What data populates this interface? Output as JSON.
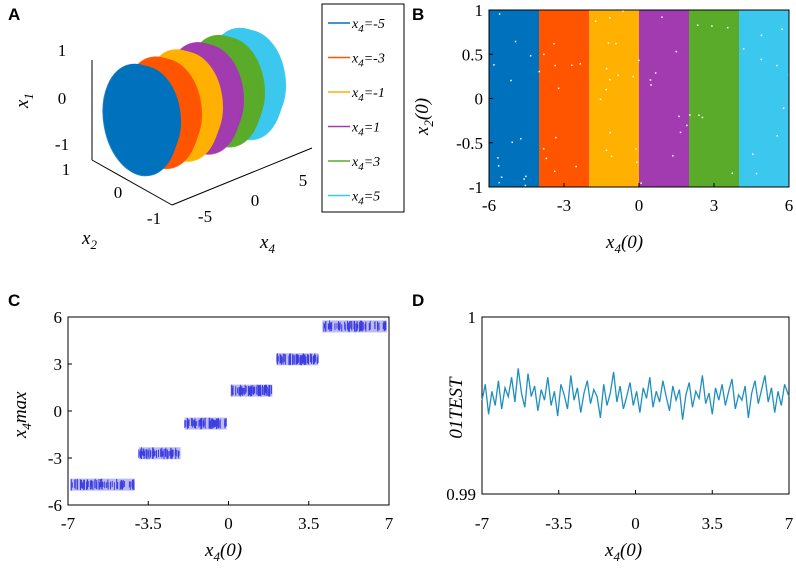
{
  "chart_data": [
    {
      "panel": "A",
      "type": "scatter",
      "title": "",
      "axes": {
        "x1": {
          "label": "x",
          "sub": "1",
          "ticks": [
            "1",
            "0",
            "-1"
          ]
        },
        "x2": {
          "label": "x",
          "sub": "2",
          "ticks": [
            "1",
            "0",
            "-1"
          ]
        },
        "x4": {
          "label": "x",
          "sub": "4",
          "ticks": [
            "-5",
            "0",
            "5"
          ]
        }
      },
      "series": [
        {
          "name": "x4=-5",
          "x4": -5,
          "color": "#0072BD"
        },
        {
          "name": "x4=-3",
          "x4": -3,
          "color": "#FF5500"
        },
        {
          "name": "x4=-1",
          "x4": -1,
          "color": "#FFB000"
        },
        {
          "name": "x4=1",
          "x4": 1,
          "color": "#A23BB0"
        },
        {
          "name": "x4=3",
          "x4": 3,
          "color": "#5AAB2A"
        },
        {
          "name": "x4=5",
          "x4": 5,
          "color": "#3CC8EE"
        }
      ],
      "legend": [
        {
          "pre": "x",
          "sub": "4",
          "post": "=-5"
        },
        {
          "pre": "x",
          "sub": "4",
          "post": "=-3"
        },
        {
          "pre": "x",
          "sub": "4",
          "post": "=-1"
        },
        {
          "pre": "x",
          "sub": "4",
          "post": "=1"
        },
        {
          "pre": "x",
          "sub": "4",
          "post": "=3"
        },
        {
          "pre": "x",
          "sub": "4",
          "post": "=5"
        }
      ]
    },
    {
      "panel": "B",
      "type": "heatmap",
      "xlabel": {
        "main": "x",
        "sub": "4",
        "post": "(0)"
      },
      "ylabel": {
        "main": "x",
        "sub": "2",
        "post": "(0)"
      },
      "xlim": [
        -6,
        6
      ],
      "ylim": [
        -1,
        1
      ],
      "xticks": [
        -6,
        -3,
        0,
        3,
        6
      ],
      "yticks": [
        1,
        0.5,
        0,
        -0.5,
        -1
      ],
      "bands": [
        {
          "x0": -6,
          "x1": -4,
          "color": "#0072BD"
        },
        {
          "x0": -4,
          "x1": -2,
          "color": "#FF5500"
        },
        {
          "x0": -2,
          "x1": 0,
          "color": "#FFB000"
        },
        {
          "x0": 0,
          "x1": 2,
          "color": "#A23BB0"
        },
        {
          "x0": 2,
          "x1": 4,
          "color": "#5AAB2A"
        },
        {
          "x0": 4,
          "x1": 6,
          "color": "#3CC8EE"
        }
      ]
    },
    {
      "panel": "C",
      "type": "scatter",
      "xlabel": {
        "main": "x",
        "sub": "4",
        "post": "(0)"
      },
      "ylabel": {
        "main": "x",
        "sub": "4",
        "post": "max"
      },
      "xlim": [
        -7,
        7
      ],
      "ylim": [
        -6,
        6
      ],
      "xticks": [
        "-7",
        "-3.5",
        "0",
        "3.5",
        "7"
      ],
      "yticks": [
        "6",
        "3",
        "0",
        "-3",
        "-6"
      ],
      "color": "#3C3CE0",
      "segments": [
        {
          "x0": -7,
          "x1": -4,
          "y": -4.7
        },
        {
          "x0": -4,
          "x1": -2,
          "y": -2.7
        },
        {
          "x0": -2,
          "x1": 0,
          "y": -0.8
        },
        {
          "x0": 0,
          "x1": 2,
          "y": 1.3
        },
        {
          "x0": 2,
          "x1": 4,
          "y": 3.3
        },
        {
          "x0": 4,
          "x1": 7,
          "y": 5.4
        }
      ]
    },
    {
      "panel": "D",
      "type": "line",
      "xlabel": {
        "main": "x",
        "sub": "4",
        "post": "(0)"
      },
      "ylabel": "01TEST",
      "xlim": [
        -7,
        7
      ],
      "ylim": [
        0.99,
        1.0
      ],
      "xticks": [
        "-7",
        "-3.5",
        "0",
        "3.5",
        "7"
      ],
      "yticks": [
        "1",
        "0.99"
      ],
      "color": "#1F8FBF",
      "x": [
        -7,
        -6.85,
        -6.7,
        -6.55,
        -6.4,
        -6.25,
        -6.1,
        -5.95,
        -5.8,
        -5.65,
        -5.5,
        -5.35,
        -5.2,
        -5.05,
        -4.9,
        -4.75,
        -4.6,
        -4.45,
        -4.3,
        -4.15,
        -4,
        -3.85,
        -3.7,
        -3.55,
        -3.4,
        -3.25,
        -3.1,
        -2.95,
        -2.8,
        -2.65,
        -2.5,
        -2.35,
        -2.2,
        -2.05,
        -1.9,
        -1.75,
        -1.6,
        -1.45,
        -1.3,
        -1.15,
        -1,
        -0.85,
        -0.7,
        -0.55,
        -0.4,
        -0.25,
        -0.1,
        0.05,
        0.2,
        0.35,
        0.5,
        0.65,
        0.8,
        0.95,
        1.1,
        1.25,
        1.4,
        1.55,
        1.7,
        1.85,
        2,
        2.15,
        2.3,
        2.45,
        2.6,
        2.75,
        2.9,
        3.05,
        3.2,
        3.35,
        3.5,
        3.65,
        3.8,
        3.95,
        4.1,
        4.25,
        4.4,
        4.55,
        4.7,
        4.85,
        5,
        5.15,
        5.3,
        5.45,
        5.6,
        5.75,
        5.9,
        6.05,
        6.2,
        6.35,
        6.5,
        6.65,
        6.8,
        7
      ],
      "y": [
        0.9953,
        0.9962,
        0.9945,
        0.9958,
        0.995,
        0.9964,
        0.9948,
        0.996,
        0.9955,
        0.9966,
        0.9952,
        0.9971,
        0.9957,
        0.9949,
        0.9968,
        0.9955,
        0.9961,
        0.9947,
        0.9959,
        0.9953,
        0.9966,
        0.995,
        0.9958,
        0.9944,
        0.9962,
        0.9956,
        0.9948,
        0.9967,
        0.9953,
        0.996,
        0.9946,
        0.9957,
        0.9964,
        0.9951,
        0.9959,
        0.9955,
        0.9943,
        0.9962,
        0.995,
        0.9957,
        0.9969,
        0.9952,
        0.9961,
        0.9948,
        0.9955,
        0.9963,
        0.995,
        0.9958,
        0.9946,
        0.996,
        0.9954,
        0.9966,
        0.9949,
        0.9958,
        0.9952,
        0.9964,
        0.9955,
        0.9947,
        0.9961,
        0.9953,
        0.9959,
        0.9942,
        0.9956,
        0.9963,
        0.9949,
        0.9958,
        0.9954,
        0.9967,
        0.9951,
        0.9957,
        0.9945,
        0.996,
        0.9953,
        0.9962,
        0.995,
        0.9958,
        0.9965,
        0.9948,
        0.9956,
        0.9953,
        0.9961,
        0.9943,
        0.9957,
        0.9964,
        0.9951,
        0.9959,
        0.9967,
        0.9952,
        0.996,
        0.9946,
        0.9958,
        0.995,
        0.9962,
        0.9955
      ]
    }
  ]
}
